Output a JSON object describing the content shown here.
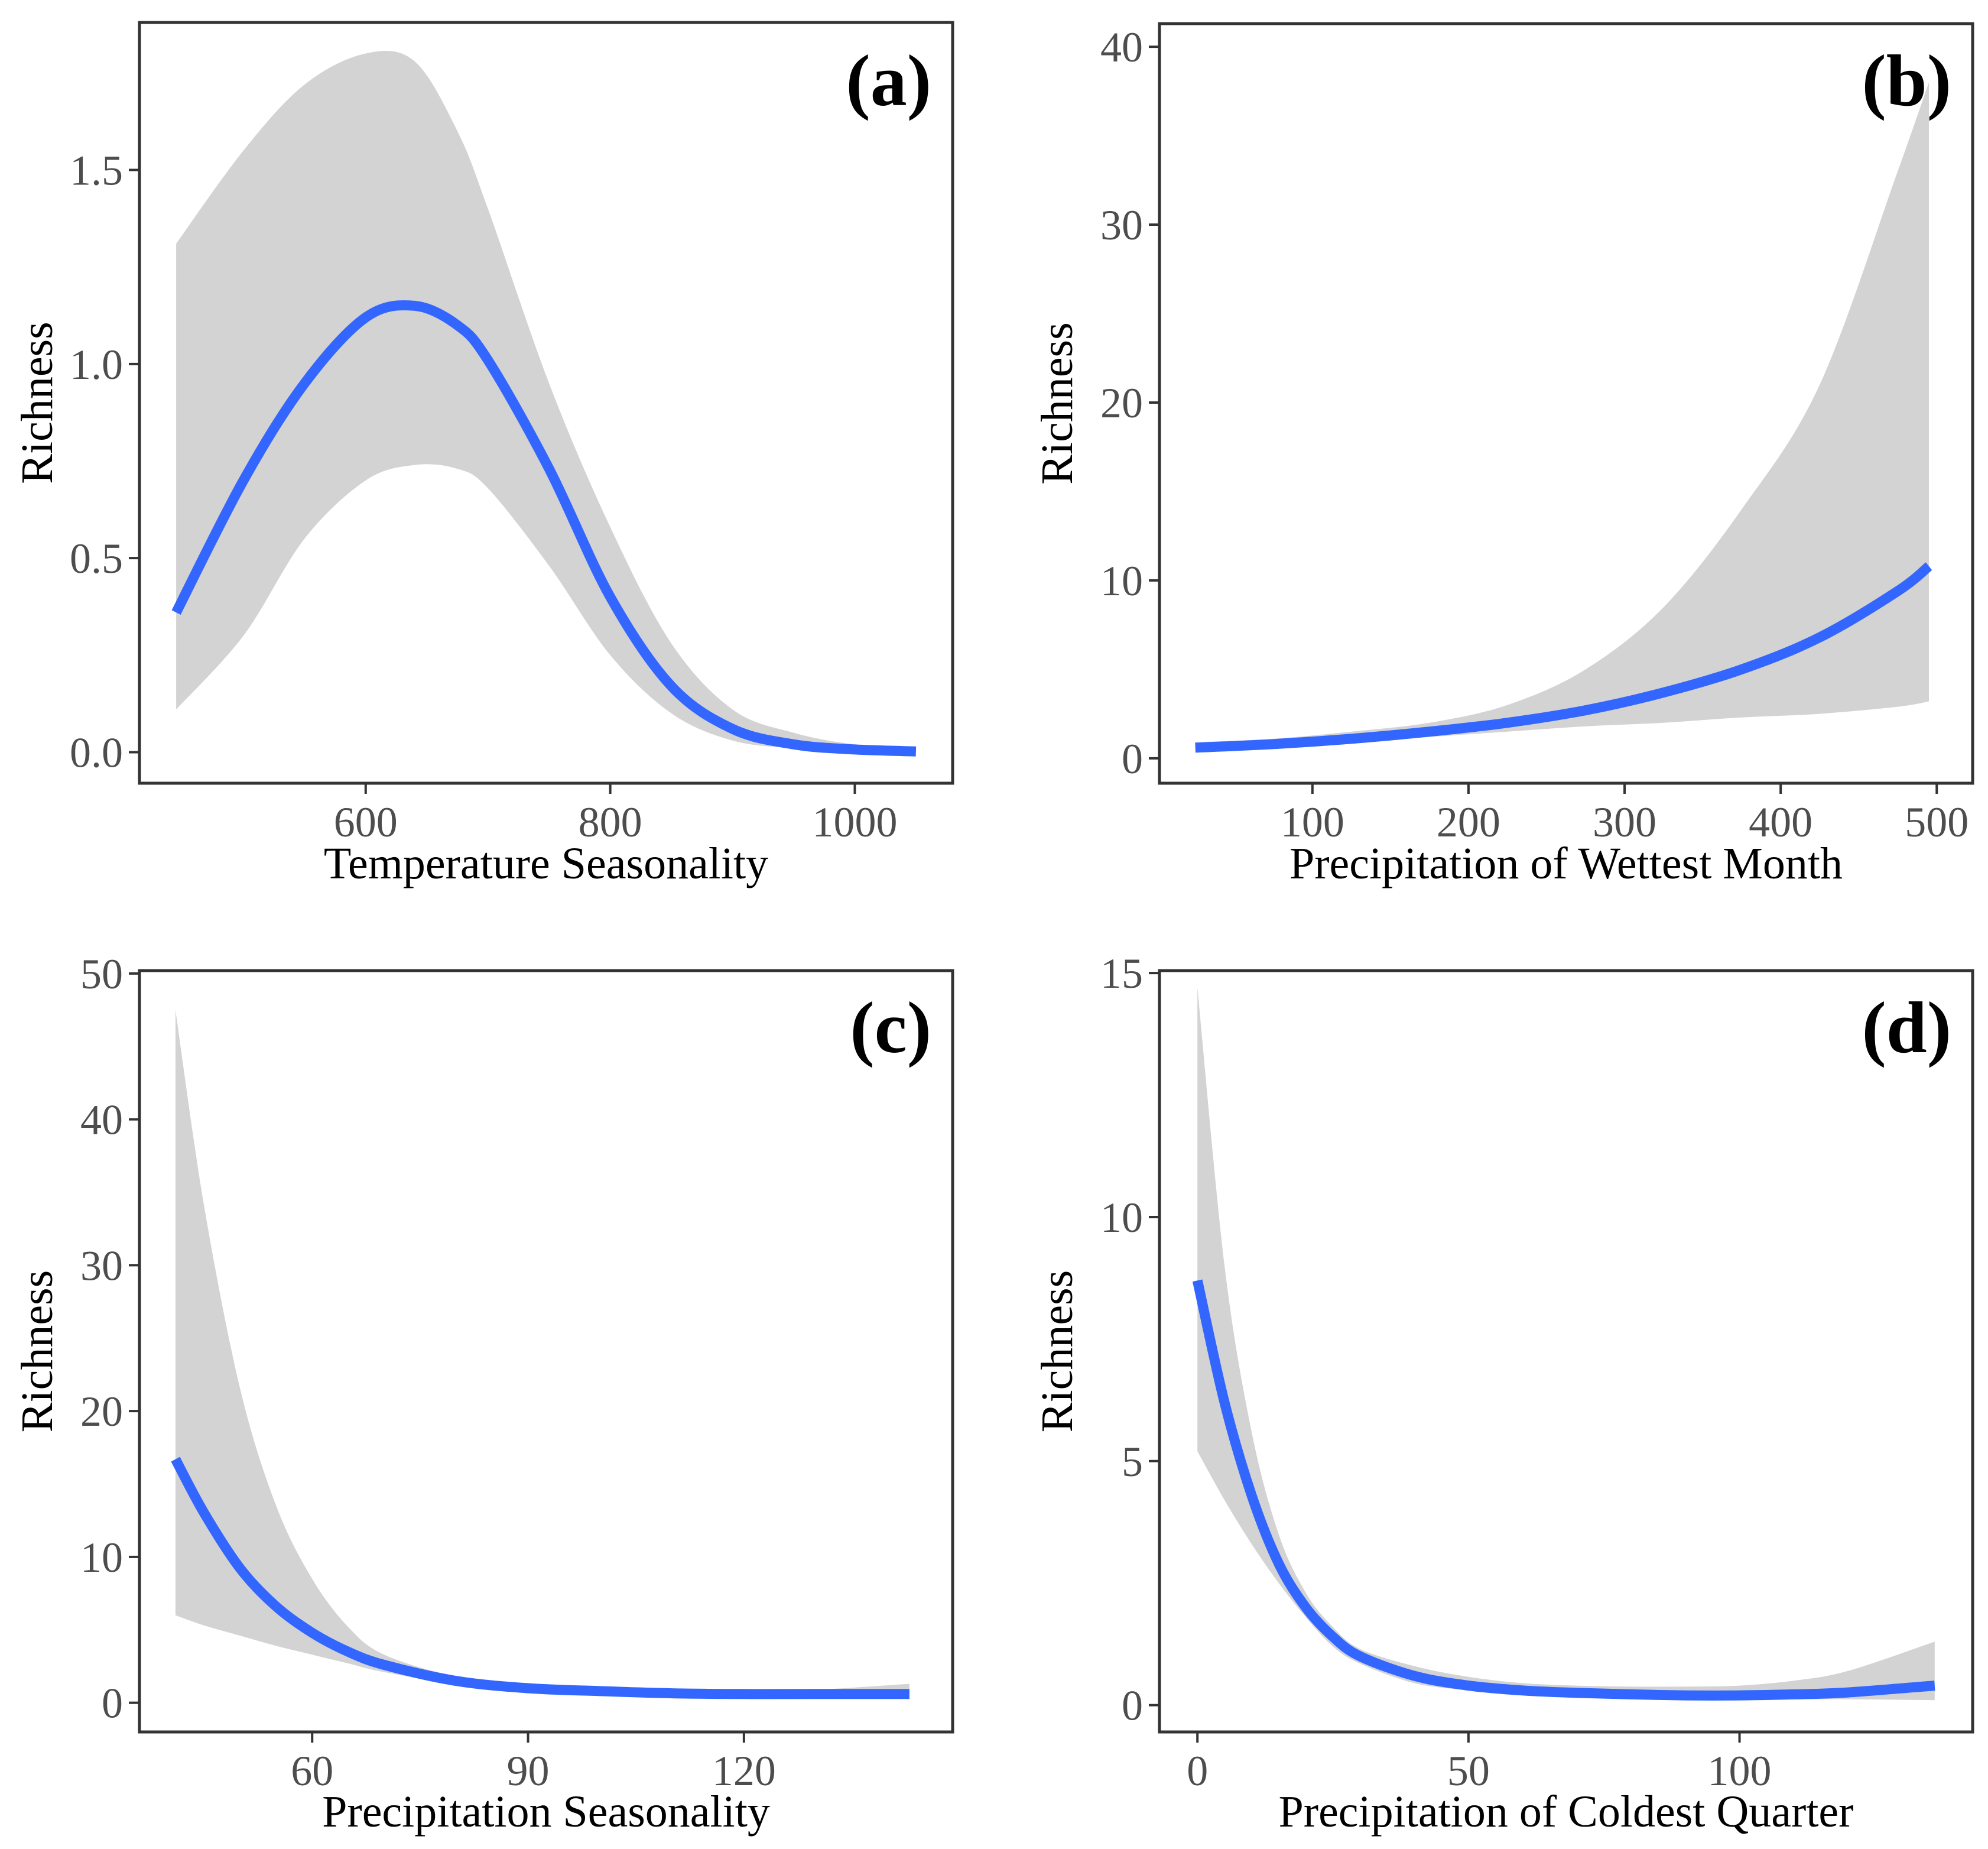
{
  "colors": {
    "fit_line": "#3366FF",
    "confidence_band": "#D3D3D3",
    "frame": "#333333",
    "tick_text": "#4D4D4D",
    "title_text": "#000000"
  },
  "chart_data": [
    {
      "type": "line",
      "panel_label": "(a)",
      "xlabel": "Temperature Seasonality",
      "ylabel": "Richness",
      "xlim": [
        415,
        1080
      ],
      "ylim": [
        -0.08,
        1.88
      ],
      "xticks": [
        {
          "v": 600,
          "label": "600"
        },
        {
          "v": 800,
          "label": "800"
        },
        {
          "v": 1000,
          "label": "1000"
        }
      ],
      "yticks": [
        {
          "v": 0,
          "label": "0.0"
        },
        {
          "v": 0.5,
          "label": "0.5"
        },
        {
          "v": 1.0,
          "label": "1.0"
        },
        {
          "v": 1.5,
          "label": "1.5"
        }
      ],
      "grid": false,
      "legend": "none",
      "series": [
        {
          "x": [
            445,
            500,
            550,
            600,
            640,
            675,
            700,
            750,
            800,
            850,
            900,
            950,
            1000,
            1050
          ],
          "y": [
            0.36,
            0.7,
            0.95,
            1.12,
            1.15,
            1.1,
            1.01,
            0.73,
            0.4,
            0.17,
            0.06,
            0.02,
            0.007,
            0.002
          ],
          "lower": [
            0.11,
            0.3,
            0.55,
            0.7,
            0.74,
            0.73,
            0.68,
            0.48,
            0.25,
            0.1,
            0.03,
            0.01,
            0.003,
            0.001
          ],
          "upper": [
            1.31,
            1.55,
            1.72,
            1.8,
            1.78,
            1.6,
            1.4,
            0.95,
            0.58,
            0.28,
            0.11,
            0.05,
            0.02,
            0.01
          ]
        }
      ]
    },
    {
      "type": "line",
      "panel_label": "(b)",
      "xlabel": "Precipitation of Wettest Month",
      "ylabel": "Richness",
      "xlim": [
        2,
        523
      ],
      "ylim": [
        -1.4,
        41.3
      ],
      "xticks": [
        {
          "v": 100,
          "label": "100"
        },
        {
          "v": 200,
          "label": "200"
        },
        {
          "v": 300,
          "label": "300"
        },
        {
          "v": 400,
          "label": "400"
        },
        {
          "v": 500,
          "label": "500"
        }
      ],
      "yticks": [
        {
          "v": 0,
          "label": "0"
        },
        {
          "v": 10,
          "label": "10"
        },
        {
          "v": 20,
          "label": "20"
        },
        {
          "v": 30,
          "label": "30"
        },
        {
          "v": 40,
          "label": "40"
        }
      ],
      "grid": false,
      "legend": "none",
      "series": [
        {
          "x": [
            25,
            75,
            125,
            175,
            225,
            275,
            325,
            375,
            425,
            475,
            495
          ],
          "y": [
            0.6,
            0.8,
            1.1,
            1.5,
            2.0,
            2.7,
            3.7,
            5.0,
            6.8,
            9.4,
            10.8
          ],
          "lower": [
            0.4,
            0.6,
            0.9,
            1.2,
            1.5,
            1.8,
            2.0,
            2.3,
            2.5,
            2.9,
            3.2
          ],
          "upper": [
            0.9,
            1.1,
            1.5,
            2.0,
            3.0,
            5.0,
            8.5,
            14.0,
            21.0,
            33.0,
            38.0
          ]
        }
      ]
    },
    {
      "type": "line",
      "panel_label": "(c)",
      "xlabel": "Precipitation Seasonality",
      "ylabel": "Richness",
      "xlim": [
        36,
        149
      ],
      "ylim": [
        -2,
        50.2
      ],
      "xticks": [
        {
          "v": 60,
          "label": "60"
        },
        {
          "v": 90,
          "label": "90"
        },
        {
          "v": 120,
          "label": "120"
        }
      ],
      "yticks": [
        {
          "v": 0,
          "label": "0"
        },
        {
          "v": 10,
          "label": "10"
        },
        {
          "v": 20,
          "label": "20"
        },
        {
          "v": 30,
          "label": "30"
        },
        {
          "v": 40,
          "label": "40"
        },
        {
          "v": 50,
          "label": "50"
        }
      ],
      "grid": false,
      "legend": "none",
      "series": [
        {
          "x": [
            41,
            45,
            50,
            55,
            60,
            65,
            70,
            80,
            90,
            100,
            110,
            120,
            130,
            143
          ],
          "y": [
            16.7,
            13.0,
            9.2,
            6.6,
            4.8,
            3.5,
            2.6,
            1.5,
            1.0,
            0.8,
            0.65,
            0.6,
            0.6,
            0.6
          ],
          "lower": [
            6.0,
            5.3,
            4.6,
            3.9,
            3.3,
            2.7,
            2.1,
            1.3,
            0.9,
            0.65,
            0.5,
            0.45,
            0.45,
            0.4
          ],
          "upper": [
            47.5,
            34.0,
            21.5,
            13.5,
            8.5,
            5.2,
            3.3,
            1.8,
            1.2,
            0.95,
            0.85,
            0.85,
            0.9,
            1.3
          ]
        }
      ]
    },
    {
      "type": "line",
      "panel_label": "(d)",
      "xlabel": "Precipitation of Coldest Quarter",
      "ylabel": "Richness",
      "xlim": [
        -7,
        143
      ],
      "ylim": [
        -0.55,
        15.05
      ],
      "xticks": [
        {
          "v": 0,
          "label": "0"
        },
        {
          "v": 50,
          "label": "50"
        },
        {
          "v": 100,
          "label": "100"
        }
      ],
      "yticks": [
        {
          "v": 0,
          "label": "0"
        },
        {
          "v": 5,
          "label": "5"
        },
        {
          "v": 10,
          "label": "10"
        },
        {
          "v": 15,
          "label": "15"
        }
      ],
      "grid": false,
      "legend": "none",
      "series": [
        {
          "x": [
            0,
            5,
            10,
            15,
            20,
            25,
            30,
            40,
            50,
            60,
            70,
            80,
            90,
            100,
            110,
            120,
            136
          ],
          "y": [
            8.7,
            6.2,
            4.3,
            2.9,
            2.0,
            1.4,
            1.0,
            0.6,
            0.4,
            0.3,
            0.25,
            0.22,
            0.2,
            0.2,
            0.22,
            0.26,
            0.4
          ],
          "lower": [
            5.2,
            4.2,
            3.3,
            2.5,
            1.8,
            1.2,
            0.85,
            0.45,
            0.3,
            0.2,
            0.15,
            0.13,
            0.12,
            0.12,
            0.12,
            0.12,
            0.1
          ],
          "upper": [
            14.7,
            9.0,
            5.6,
            3.5,
            2.3,
            1.6,
            1.15,
            0.8,
            0.58,
            0.45,
            0.4,
            0.38,
            0.38,
            0.4,
            0.5,
            0.7,
            1.3
          ]
        }
      ]
    }
  ]
}
